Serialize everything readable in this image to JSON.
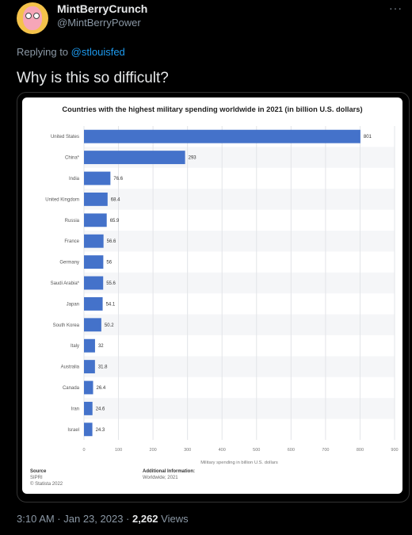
{
  "tweet": {
    "display_name": "MintBerryCrunch",
    "handle": "@MintBerryPower",
    "more_icon": "···",
    "replying_prefix": "Replying to",
    "replying_to": "@stlouisfed",
    "text": "Why is this so difficult?",
    "timestamp": "3:10 AM · Jan 23, 2023 ·",
    "views_count": "2,262",
    "views_label": "Views"
  },
  "chart_data": {
    "type": "bar",
    "orientation": "horizontal",
    "title": "Countries with the highest military spending worldwide in 2021 (in billion U.S. dollars)",
    "xlabel": "Military spending in billion U.S. dollars",
    "ylabel": "",
    "xlim": [
      0,
      900
    ],
    "xticks": [
      0,
      100,
      200,
      300,
      400,
      500,
      600,
      700,
      800,
      900
    ],
    "bar_color": "#4472ca",
    "categories": [
      "United States",
      "China*",
      "India",
      "United Kingdom",
      "Russia",
      "France",
      "Germany",
      "Saudi Arabia*",
      "Japan",
      "South Korea",
      "Italy",
      "Australia",
      "Canada",
      "Iran",
      "Israel"
    ],
    "values": [
      801,
      293,
      76.6,
      68.4,
      65.9,
      56.6,
      56,
      55.6,
      54.1,
      50.2,
      32,
      31.8,
      26.4,
      24.6,
      24.3
    ],
    "value_labels": [
      "801",
      "293",
      "76.6",
      "68.4",
      "65.9",
      "56.6",
      "56",
      "55.6",
      "54.1",
      "50.2",
      "32",
      "31.8",
      "26.4",
      "24.6",
      "24.3"
    ],
    "grid": true
  },
  "chart_footer": {
    "source_heading": "Source",
    "source_lines": [
      "SIPRI",
      "© Statista 2022"
    ],
    "info_heading": "Additional Information:",
    "info_lines": [
      "Worldwide; 2021"
    ]
  }
}
